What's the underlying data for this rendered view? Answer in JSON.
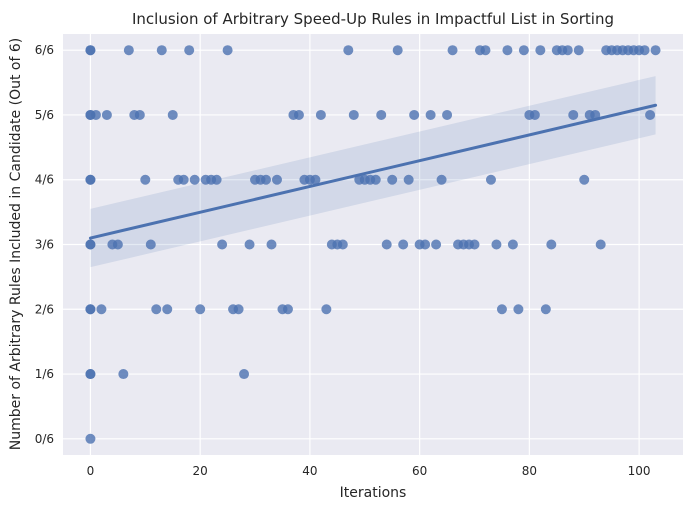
{
  "chart_data": {
    "type": "scatter",
    "title": "Inclusion of Arbitrary Speed-Up Rules in Impactful List in Sorting",
    "xlabel": "Iterations",
    "ylabel": "Number of Arbitrary Rules Included in Candidate (Out of 6)",
    "xlim": [
      -5,
      108
    ],
    "ylim": [
      -0.25,
      6.25
    ],
    "xticks": [
      0,
      20,
      40,
      60,
      80,
      100
    ],
    "xtick_labels": [
      "0",
      "20",
      "40",
      "60",
      "80",
      "100"
    ],
    "yticks": [
      0,
      1,
      2,
      3,
      4,
      5,
      6
    ],
    "ytick_labels": [
      "0/6",
      "1/6",
      "2/6",
      "3/6",
      "4/6",
      "5/6",
      "6/6"
    ],
    "grid": true,
    "colors": {
      "background": "#eaeaf2",
      "grid": "#ffffff",
      "points": "#4c72b0",
      "regression_line": "#4c72b0",
      "confidence_band": "#4c72b0"
    },
    "points": [
      [
        0,
        6
      ],
      [
        0,
        6
      ],
      [
        0,
        5
      ],
      [
        0,
        5
      ],
      [
        0,
        4
      ],
      [
        0,
        4
      ],
      [
        0,
        3
      ],
      [
        0,
        3
      ],
      [
        0,
        2
      ],
      [
        0,
        2
      ],
      [
        0,
        1
      ],
      [
        0,
        1
      ],
      [
        0,
        0
      ],
      [
        1,
        5
      ],
      [
        2,
        2
      ],
      [
        3,
        5
      ],
      [
        4,
        3
      ],
      [
        5,
        3
      ],
      [
        6,
        1
      ],
      [
        7,
        6
      ],
      [
        8,
        5
      ],
      [
        9,
        5
      ],
      [
        10,
        4
      ],
      [
        11,
        3
      ],
      [
        12,
        2
      ],
      [
        13,
        6
      ],
      [
        14,
        2
      ],
      [
        15,
        5
      ],
      [
        16,
        4
      ],
      [
        17,
        4
      ],
      [
        18,
        6
      ],
      [
        19,
        4
      ],
      [
        20,
        2
      ],
      [
        21,
        4
      ],
      [
        22,
        4
      ],
      [
        23,
        4
      ],
      [
        24,
        3
      ],
      [
        25,
        6
      ],
      [
        26,
        2
      ],
      [
        27,
        2
      ],
      [
        28,
        1
      ],
      [
        29,
        3
      ],
      [
        30,
        4
      ],
      [
        31,
        4
      ],
      [
        32,
        4
      ],
      [
        33,
        3
      ],
      [
        34,
        4
      ],
      [
        35,
        2
      ],
      [
        36,
        2
      ],
      [
        37,
        5
      ],
      [
        38,
        5
      ],
      [
        39,
        4
      ],
      [
        40,
        4
      ],
      [
        41,
        4
      ],
      [
        42,
        5
      ],
      [
        43,
        2
      ],
      [
        44,
        3
      ],
      [
        45,
        3
      ],
      [
        46,
        3
      ],
      [
        47,
        6
      ],
      [
        48,
        5
      ],
      [
        49,
        4
      ],
      [
        50,
        4
      ],
      [
        51,
        4
      ],
      [
        52,
        4
      ],
      [
        53,
        5
      ],
      [
        54,
        3
      ],
      [
        55,
        4
      ],
      [
        56,
        6
      ],
      [
        57,
        3
      ],
      [
        58,
        4
      ],
      [
        59,
        5
      ],
      [
        60,
        3
      ],
      [
        61,
        3
      ],
      [
        62,
        5
      ],
      [
        63,
        3
      ],
      [
        64,
        4
      ],
      [
        65,
        5
      ],
      [
        66,
        6
      ],
      [
        67,
        3
      ],
      [
        68,
        3
      ],
      [
        69,
        3
      ],
      [
        70,
        3
      ],
      [
        71,
        6
      ],
      [
        72,
        6
      ],
      [
        73,
        4
      ],
      [
        74,
        3
      ],
      [
        75,
        2
      ],
      [
        76,
        6
      ],
      [
        77,
        3
      ],
      [
        78,
        2
      ],
      [
        79,
        6
      ],
      [
        80,
        5
      ],
      [
        81,
        5
      ],
      [
        82,
        6
      ],
      [
        83,
        2
      ],
      [
        84,
        3
      ],
      [
        85,
        6
      ],
      [
        86,
        6
      ],
      [
        87,
        6
      ],
      [
        88,
        5
      ],
      [
        89,
        6
      ],
      [
        90,
        4
      ],
      [
        91,
        5
      ],
      [
        92,
        5
      ],
      [
        93,
        3
      ],
      [
        94,
        6
      ],
      [
        95,
        6
      ],
      [
        96,
        6
      ],
      [
        97,
        6
      ],
      [
        98,
        6
      ],
      [
        99,
        6
      ],
      [
        100,
        6
      ],
      [
        101,
        6
      ],
      [
        102,
        5
      ],
      [
        103,
        6
      ]
    ],
    "regression": {
      "x_range": [
        0,
        103
      ],
      "y_start": 3.1,
      "y_end": 5.15,
      "ci_at_start": [
        2.65,
        3.55
      ],
      "ci_at_end": [
        4.7,
        5.6
      ]
    }
  }
}
